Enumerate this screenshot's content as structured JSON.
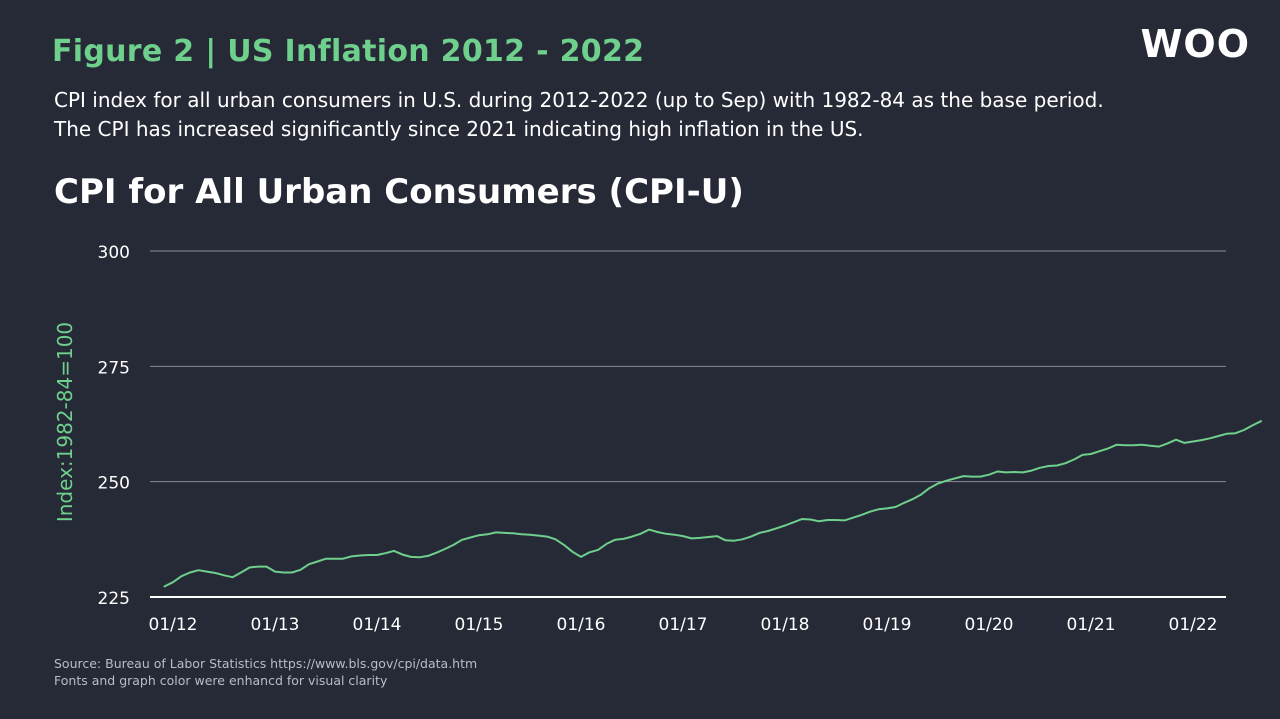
{
  "figure_title": "Figure 2 | US Inflation 2012 - 2022",
  "subtitle_lines": [
    "CPI index for all urban consumers in U.S. during 2012-2022 (up to Sep) with 1982-84 as the base period.",
    "The CPI has increased significantly since 2021 indicating high inflation in the US."
  ],
  "logo_text": "WOO",
  "footer_lines": [
    "Source: Bureau of Labor Statistics https://www.bls.gov/cpi/data.htm",
    "Fonts and graph color were enhancd for visual clarity"
  ],
  "colors": {
    "background": "#262a36",
    "accent": "#6fcf8c",
    "line": "#6fcf8c",
    "grid": "#8a8d96"
  },
  "chart_data": {
    "type": "line",
    "title": "CPI for All Urban Consumers (CPI-U)",
    "xlabel": "",
    "ylabel": "Index:1982-84=100",
    "ylim": [
      225,
      300
    ],
    "yticks": [
      225,
      250,
      275,
      300
    ],
    "xlim": [
      0,
      128
    ],
    "xtick_positions": [
      0,
      12,
      24,
      36,
      48,
      60,
      72,
      84,
      96,
      108,
      120
    ],
    "xtick_labels": [
      "01/12",
      "01/13",
      "01/14",
      "01/15",
      "01/16",
      "01/17",
      "01/18",
      "01/19",
      "01/20",
      "01/21",
      "01/22"
    ],
    "grid": true,
    "series": [
      {
        "name": "CPI-U",
        "x": [
          -1,
          0,
          1,
          2,
          3,
          4,
          5,
          6,
          7,
          8,
          9,
          10,
          11,
          12,
          13,
          14,
          15,
          16,
          17,
          18,
          19,
          20,
          21,
          22,
          23,
          24,
          25,
          26,
          27,
          28,
          29,
          30,
          31,
          32,
          33,
          34,
          35,
          36,
          37,
          38,
          39,
          40,
          41,
          42,
          43,
          44,
          45,
          46,
          47,
          48,
          49,
          50,
          51,
          52,
          53,
          54,
          55,
          56,
          57,
          58,
          59,
          60,
          61,
          62,
          63,
          64,
          65,
          66,
          67,
          68,
          69,
          70,
          71,
          72,
          73,
          74,
          75,
          76,
          77,
          78,
          79,
          80,
          81,
          82,
          83,
          84,
          85,
          86,
          87,
          88,
          89,
          90,
          91,
          92,
          93,
          94,
          95,
          96,
          97,
          98,
          99,
          100,
          101,
          102,
          103,
          104,
          105,
          106,
          107,
          108,
          109,
          110,
          111,
          112,
          113,
          114,
          115,
          116,
          117,
          118,
          119,
          120,
          121,
          122,
          123,
          124,
          125,
          126,
          127,
          128
        ],
        "values": [
          227.3,
          228.2,
          229.5,
          230.3,
          230.8,
          230.5,
          230.2,
          229.7,
          229.3,
          230.3,
          231.4,
          231.6,
          231.6,
          230.5,
          230.3,
          230.3,
          230.9,
          232.1,
          232.7,
          233.3,
          233.3,
          233.3,
          233.8,
          234.0,
          234.1,
          234.1,
          234.5,
          235.0,
          234.2,
          233.7,
          233.6,
          233.9,
          234.6,
          235.4,
          236.3,
          237.4,
          237.9,
          238.4,
          238.6,
          239.0,
          238.9,
          238.8,
          238.6,
          238.5,
          238.3,
          238.1,
          237.5,
          236.3,
          234.8,
          233.7,
          234.7,
          235.2,
          236.5,
          237.4,
          237.6,
          238.1,
          238.7,
          239.6,
          239.1,
          238.7,
          238.5,
          238.2,
          237.7,
          237.8,
          238.0,
          238.2,
          237.3,
          237.2,
          237.5,
          238.1,
          238.9,
          239.3,
          239.9,
          240.5,
          241.2,
          241.9,
          241.8,
          241.4,
          241.7,
          241.7,
          241.6,
          242.2,
          242.8,
          243.5,
          244.0,
          244.2,
          244.5,
          245.4,
          246.2,
          247.2,
          248.6,
          249.6,
          250.2,
          250.7,
          251.2,
          251.1,
          251.1,
          251.5,
          252.2,
          252.0,
          252.1,
          252.0,
          252.4,
          253.0,
          253.4,
          253.5,
          254.0,
          254.8,
          255.8,
          256.0,
          256.6,
          257.2,
          258.0,
          257.9,
          257.9,
          258.0,
          257.8,
          257.6,
          258.3,
          259.1,
          258.4,
          258.7,
          259.0,
          259.4,
          259.9,
          260.4,
          260.5,
          261.2,
          262.2,
          263.1
        ]
      }
    ]
  }
}
